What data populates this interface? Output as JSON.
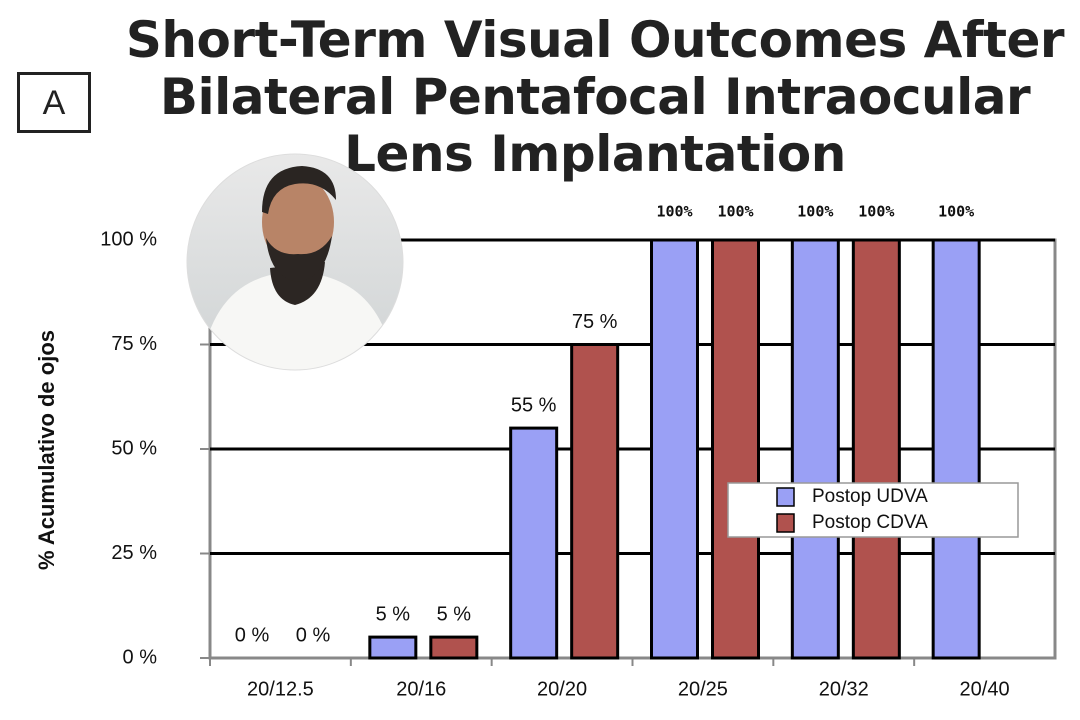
{
  "chart_data": {
    "type": "bar",
    "panel_label": "A",
    "title": "Short-Term Visual Outcomes After Bilateral Pentafocal Intraocular Lens Implantation",
    "y_label": "% Acumulativo de ojos",
    "categories": [
      "20/12.5",
      "20/16",
      "20/20",
      "20/25",
      "20/32",
      "20/40"
    ],
    "series": [
      {
        "name": "Postop UDVA",
        "color": "#9aa0f5",
        "values": [
          0,
          5,
          55,
          100,
          100,
          100
        ],
        "value_labels": [
          "0 %",
          "5 %",
          "55 %",
          "100%",
          "100%",
          "100%"
        ]
      },
      {
        "name": "Postop CDVA",
        "color": "#b0524e",
        "values": [
          0,
          5,
          75,
          100,
          100,
          null
        ],
        "value_labels": [
          "0 %",
          "5 %",
          "75 %",
          "100%",
          "100%",
          null
        ]
      }
    ],
    "ylim": [
      0,
      100
    ],
    "yticks": [
      {
        "value": 0,
        "label": "0 %"
      },
      {
        "value": 25,
        "label": "25 %"
      },
      {
        "value": 50,
        "label": "50 %"
      },
      {
        "value": 75,
        "label": "75 %"
      },
      {
        "value": 100,
        "label": "100 %"
      }
    ],
    "grid": true,
    "legend": "right"
  }
}
